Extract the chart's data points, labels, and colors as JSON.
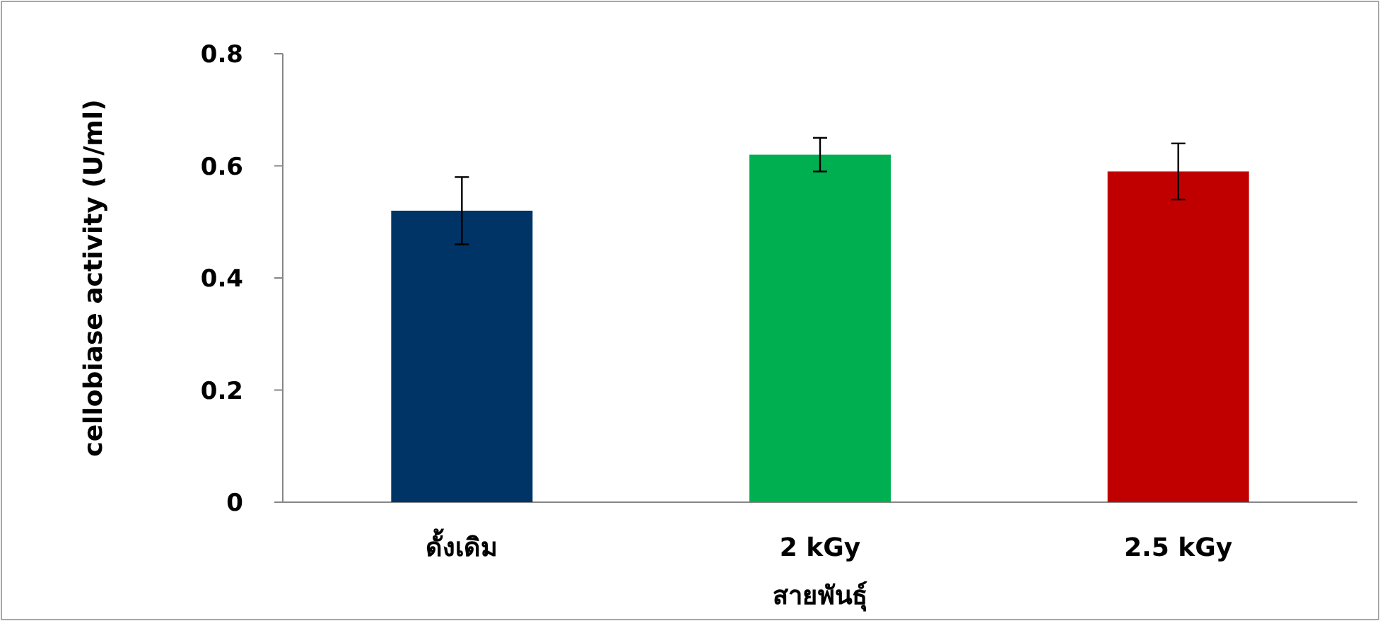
{
  "chart_data": {
    "type": "bar",
    "xlabel": "สายพันธุ์",
    "ylabel": "cellobiase activity (U/ml)",
    "categories": [
      "ดั้งเดิม",
      "2 kGy",
      "2.5 kGy"
    ],
    "values": [
      0.52,
      0.62,
      0.59
    ],
    "colors": [
      "#003366",
      "#00b050",
      "#c00000"
    ],
    "errors": [
      0.06,
      0.03,
      0.05
    ],
    "ylim": [
      0,
      0.8
    ],
    "yticks": [
      0,
      0.2,
      0.4,
      0.6,
      0.8
    ]
  }
}
